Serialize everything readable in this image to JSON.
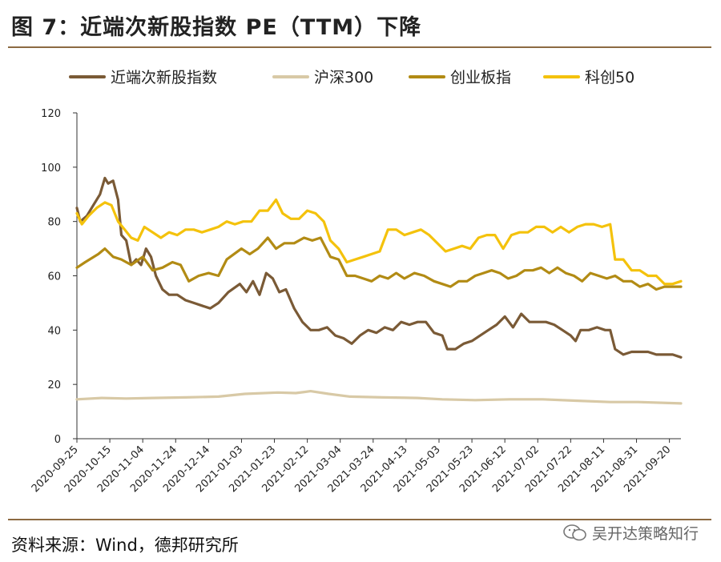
{
  "figure": {
    "title": "图 7：近端次新股指数 PE（TTM）下降",
    "source": "资料来源：Wind，德邦研究所",
    "watermark": "吴开达策略知行"
  },
  "chart_data": {
    "type": "line",
    "title": "图 7：近端次新股指数 PE（TTM）下降",
    "xlabel": "",
    "ylabel": "",
    "ylim": [
      0,
      120
    ],
    "yticks": [
      0,
      20,
      40,
      60,
      80,
      100,
      120
    ],
    "x_ticks": [
      "2020-09-25",
      "2020-10-15",
      "2020-11-04",
      "2020-11-24",
      "2020-12-14",
      "2021-01-03",
      "2021-01-23",
      "2021-02-12",
      "2021-03-04",
      "2021-03-24",
      "2021-04-13",
      "2021-05-03",
      "2021-05-23",
      "2021-06-12",
      "2021-07-02",
      "2021-07-22",
      "2021-08-11",
      "2021-08-31",
      "2021-09-20"
    ],
    "x_start": "2020-09-25",
    "x_end": "2021-09-27",
    "legend_position": "top",
    "series": [
      {
        "name": "近端次新股指数",
        "color": "#7a5a36",
        "points": [
          [
            "2020-09-25",
            85
          ],
          [
            "2020-09-27",
            80
          ],
          [
            "2020-10-01",
            82
          ],
          [
            "2020-10-05",
            86
          ],
          [
            "2020-10-09",
            90
          ],
          [
            "2020-10-12",
            96
          ],
          [
            "2020-10-14",
            94
          ],
          [
            "2020-10-17",
            95
          ],
          [
            "2020-10-20",
            88
          ],
          [
            "2020-10-22",
            75
          ],
          [
            "2020-10-25",
            73
          ],
          [
            "2020-10-28",
            64
          ],
          [
            "2020-10-31",
            66
          ],
          [
            "2020-11-03",
            64
          ],
          [
            "2020-11-06",
            70
          ],
          [
            "2020-11-09",
            67
          ],
          [
            "2020-11-12",
            60
          ],
          [
            "2020-11-16",
            55
          ],
          [
            "2020-11-20",
            53
          ],
          [
            "2020-11-25",
            53
          ],
          [
            "2020-11-30",
            51
          ],
          [
            "2020-12-05",
            50
          ],
          [
            "2020-12-10",
            49
          ],
          [
            "2020-12-15",
            48
          ],
          [
            "2020-12-20",
            50
          ],
          [
            "2020-12-26",
            54
          ],
          [
            "2021-01-02",
            57
          ],
          [
            "2021-01-06",
            54
          ],
          [
            "2021-01-10",
            58
          ],
          [
            "2021-01-14",
            53
          ],
          [
            "2021-01-18",
            61
          ],
          [
            "2021-01-22",
            59
          ],
          [
            "2021-01-26",
            54
          ],
          [
            "2021-01-30",
            55
          ],
          [
            "2021-02-04",
            48
          ],
          [
            "2021-02-09",
            43
          ],
          [
            "2021-02-14",
            40
          ],
          [
            "2021-02-19",
            40
          ],
          [
            "2021-02-24",
            41
          ],
          [
            "2021-03-01",
            38
          ],
          [
            "2021-03-06",
            37
          ],
          [
            "2021-03-11",
            35
          ],
          [
            "2021-03-16",
            38
          ],
          [
            "2021-03-21",
            40
          ],
          [
            "2021-03-26",
            39
          ],
          [
            "2021-03-31",
            41
          ],
          [
            "2021-04-05",
            40
          ],
          [
            "2021-04-10",
            43
          ],
          [
            "2021-04-15",
            42
          ],
          [
            "2021-04-20",
            43
          ],
          [
            "2021-04-25",
            43
          ],
          [
            "2021-04-30",
            39
          ],
          [
            "2021-05-05",
            38
          ],
          [
            "2021-05-08",
            33
          ],
          [
            "2021-05-13",
            33
          ],
          [
            "2021-05-18",
            35
          ],
          [
            "2021-05-23",
            36
          ],
          [
            "2021-05-28",
            38
          ],
          [
            "2021-06-02",
            40
          ],
          [
            "2021-06-07",
            42
          ],
          [
            "2021-06-12",
            45
          ],
          [
            "2021-06-17",
            41
          ],
          [
            "2021-06-22",
            46
          ],
          [
            "2021-06-27",
            43
          ],
          [
            "2021-07-02",
            43
          ],
          [
            "2021-07-07",
            43
          ],
          [
            "2021-07-12",
            42
          ],
          [
            "2021-07-17",
            40
          ],
          [
            "2021-07-22",
            38
          ],
          [
            "2021-07-25",
            36
          ],
          [
            "2021-07-28",
            40
          ],
          [
            "2021-08-02",
            40
          ],
          [
            "2021-08-07",
            41
          ],
          [
            "2021-08-12",
            40
          ],
          [
            "2021-08-15",
            40
          ],
          [
            "2021-08-18",
            33
          ],
          [
            "2021-08-23",
            31
          ],
          [
            "2021-08-28",
            32
          ],
          [
            "2021-09-02",
            32
          ],
          [
            "2021-09-07",
            32
          ],
          [
            "2021-09-12",
            31
          ],
          [
            "2021-09-17",
            31
          ],
          [
            "2021-09-22",
            31
          ],
          [
            "2021-09-27",
            30
          ]
        ]
      },
      {
        "name": "沪深300",
        "color": "#d8c9a6",
        "points": [
          [
            "2020-09-25",
            14.5
          ],
          [
            "2020-10-10",
            15
          ],
          [
            "2020-10-25",
            14.8
          ],
          [
            "2020-11-10",
            15
          ],
          [
            "2020-11-30",
            15.2
          ],
          [
            "2020-12-20",
            15.5
          ],
          [
            "2021-01-05",
            16.5
          ],
          [
            "2021-01-25",
            17
          ],
          [
            "2021-02-05",
            16.8
          ],
          [
            "2021-02-14",
            17.5
          ],
          [
            "2021-02-25",
            16.5
          ],
          [
            "2021-03-10",
            15.5
          ],
          [
            "2021-03-30",
            15.2
          ],
          [
            "2021-04-20",
            15
          ],
          [
            "2021-05-05",
            14.5
          ],
          [
            "2021-05-25",
            14.2
          ],
          [
            "2021-06-15",
            14.5
          ],
          [
            "2021-07-05",
            14.5
          ],
          [
            "2021-07-25",
            14
          ],
          [
            "2021-08-15",
            13.5
          ],
          [
            "2021-09-01",
            13.5
          ],
          [
            "2021-09-27",
            13
          ]
        ]
      },
      {
        "name": "创业板指",
        "color": "#b28b14",
        "points": [
          [
            "2020-09-25",
            63
          ],
          [
            "2020-09-30",
            65
          ],
          [
            "2020-10-08",
            68
          ],
          [
            "2020-10-12",
            70
          ],
          [
            "2020-10-17",
            67
          ],
          [
            "2020-10-22",
            66
          ],
          [
            "2020-10-28",
            64
          ],
          [
            "2020-11-04",
            67
          ],
          [
            "2020-11-10",
            62
          ],
          [
            "2020-11-16",
            63
          ],
          [
            "2020-11-22",
            65
          ],
          [
            "2020-11-27",
            64
          ],
          [
            "2020-12-02",
            58
          ],
          [
            "2020-12-08",
            60
          ],
          [
            "2020-12-14",
            61
          ],
          [
            "2020-12-20",
            60
          ],
          [
            "2020-12-25",
            66
          ],
          [
            "2021-01-03",
            70
          ],
          [
            "2021-01-08",
            68
          ],
          [
            "2021-01-13",
            70
          ],
          [
            "2021-01-19",
            74
          ],
          [
            "2021-01-24",
            70
          ],
          [
            "2021-01-29",
            72
          ],
          [
            "2021-02-04",
            72
          ],
          [
            "2021-02-10",
            74
          ],
          [
            "2021-02-15",
            73
          ],
          [
            "2021-02-20",
            74
          ],
          [
            "2021-02-26",
            67
          ],
          [
            "2021-03-03",
            66
          ],
          [
            "2021-03-08",
            60
          ],
          [
            "2021-03-13",
            60
          ],
          [
            "2021-03-18",
            59
          ],
          [
            "2021-03-23",
            58
          ],
          [
            "2021-03-28",
            60
          ],
          [
            "2021-04-02",
            59
          ],
          [
            "2021-04-07",
            61
          ],
          [
            "2021-04-12",
            59
          ],
          [
            "2021-04-18",
            61
          ],
          [
            "2021-04-24",
            60
          ],
          [
            "2021-04-30",
            58
          ],
          [
            "2021-05-05",
            57
          ],
          [
            "2021-05-10",
            56
          ],
          [
            "2021-05-15",
            58
          ],
          [
            "2021-05-20",
            58
          ],
          [
            "2021-05-25",
            60
          ],
          [
            "2021-05-30",
            61
          ],
          [
            "2021-06-04",
            62
          ],
          [
            "2021-06-09",
            61
          ],
          [
            "2021-06-14",
            59
          ],
          [
            "2021-06-19",
            60
          ],
          [
            "2021-06-24",
            62
          ],
          [
            "2021-06-29",
            62
          ],
          [
            "2021-07-04",
            63
          ],
          [
            "2021-07-09",
            61
          ],
          [
            "2021-07-14",
            63
          ],
          [
            "2021-07-19",
            61
          ],
          [
            "2021-07-24",
            60
          ],
          [
            "2021-07-29",
            58
          ],
          [
            "2021-08-03",
            61
          ],
          [
            "2021-08-08",
            60
          ],
          [
            "2021-08-13",
            59
          ],
          [
            "2021-08-18",
            60
          ],
          [
            "2021-08-23",
            58
          ],
          [
            "2021-08-28",
            58
          ],
          [
            "2021-09-02",
            56
          ],
          [
            "2021-09-07",
            57
          ],
          [
            "2021-09-12",
            55
          ],
          [
            "2021-09-17",
            56
          ],
          [
            "2021-09-22",
            56
          ],
          [
            "2021-09-27",
            56
          ]
        ]
      },
      {
        "name": "科创50",
        "color": "#f4c20c",
        "points": [
          [
            "2020-09-25",
            83
          ],
          [
            "2020-09-28",
            79
          ],
          [
            "2020-10-02",
            82
          ],
          [
            "2020-10-07",
            85
          ],
          [
            "2020-10-12",
            87
          ],
          [
            "2020-10-16",
            86
          ],
          [
            "2020-10-20",
            80
          ],
          [
            "2020-10-24",
            77
          ],
          [
            "2020-10-28",
            74
          ],
          [
            "2020-11-01",
            73
          ],
          [
            "2020-11-05",
            78
          ],
          [
            "2020-11-10",
            76
          ],
          [
            "2020-11-15",
            74
          ],
          [
            "2020-11-20",
            76
          ],
          [
            "2020-11-25",
            75
          ],
          [
            "2020-11-30",
            77
          ],
          [
            "2020-12-05",
            77
          ],
          [
            "2020-12-10",
            76
          ],
          [
            "2020-12-15",
            77
          ],
          [
            "2020-12-20",
            78
          ],
          [
            "2020-12-25",
            80
          ],
          [
            "2020-12-30",
            79
          ],
          [
            "2021-01-04",
            80
          ],
          [
            "2021-01-09",
            80
          ],
          [
            "2021-01-14",
            84
          ],
          [
            "2021-01-19",
            84
          ],
          [
            "2021-01-24",
            88
          ],
          [
            "2021-01-28",
            83
          ],
          [
            "2021-02-02",
            81
          ],
          [
            "2021-02-07",
            81
          ],
          [
            "2021-02-12",
            84
          ],
          [
            "2021-02-17",
            83
          ],
          [
            "2021-02-22",
            80
          ],
          [
            "2021-02-26",
            73
          ],
          [
            "2021-03-03",
            70
          ],
          [
            "2021-03-08",
            65
          ],
          [
            "2021-03-13",
            66
          ],
          [
            "2021-03-18",
            67
          ],
          [
            "2021-03-23",
            68
          ],
          [
            "2021-03-28",
            69
          ],
          [
            "2021-04-02",
            77
          ],
          [
            "2021-04-07",
            77
          ],
          [
            "2021-04-12",
            75
          ],
          [
            "2021-04-17",
            76
          ],
          [
            "2021-04-22",
            77
          ],
          [
            "2021-04-27",
            75
          ],
          [
            "2021-05-02",
            72
          ],
          [
            "2021-05-07",
            69
          ],
          [
            "2021-05-12",
            70
          ],
          [
            "2021-05-17",
            71
          ],
          [
            "2021-05-22",
            70
          ],
          [
            "2021-05-27",
            74
          ],
          [
            "2021-06-01",
            75
          ],
          [
            "2021-06-06",
            75
          ],
          [
            "2021-06-11",
            70
          ],
          [
            "2021-06-16",
            75
          ],
          [
            "2021-06-21",
            76
          ],
          [
            "2021-06-26",
            76
          ],
          [
            "2021-07-01",
            78
          ],
          [
            "2021-07-06",
            78
          ],
          [
            "2021-07-11",
            76
          ],
          [
            "2021-07-16",
            78
          ],
          [
            "2021-07-21",
            76
          ],
          [
            "2021-07-26",
            78
          ],
          [
            "2021-07-31",
            79
          ],
          [
            "2021-08-05",
            79
          ],
          [
            "2021-08-10",
            78
          ],
          [
            "2021-08-15",
            79
          ],
          [
            "2021-08-18",
            66
          ],
          [
            "2021-08-23",
            66
          ],
          [
            "2021-08-28",
            62
          ],
          [
            "2021-09-02",
            62
          ],
          [
            "2021-09-07",
            60
          ],
          [
            "2021-09-12",
            60
          ],
          [
            "2021-09-17",
            57
          ],
          [
            "2021-09-22",
            57
          ],
          [
            "2021-09-27",
            58
          ]
        ]
      }
    ]
  }
}
